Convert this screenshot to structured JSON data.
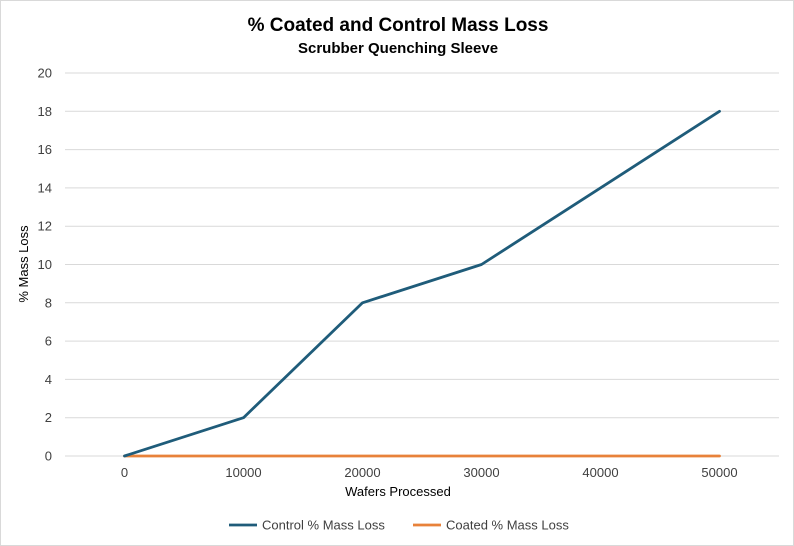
{
  "chart_data": {
    "type": "line",
    "title": "% Coated and Control Mass Loss",
    "subtitle": "Scrubber Quenching Sleeve",
    "xlabel": "Wafers Processed",
    "ylabel": "% Mass Loss",
    "x": [
      0,
      10000,
      20000,
      30000,
      40000,
      50000
    ],
    "x_tick_labels": [
      "0",
      "10000",
      "20000",
      "30000",
      "40000",
      "50000"
    ],
    "ylim": [
      0,
      20
    ],
    "y_ticks": [
      0,
      2,
      4,
      6,
      8,
      10,
      12,
      14,
      16,
      18,
      20
    ],
    "y_tick_labels": [
      "0",
      "2",
      "4",
      "6",
      "8",
      "10",
      "12",
      "14",
      "16",
      "18",
      "20"
    ],
    "grid": true,
    "legend_position": "bottom",
    "series": [
      {
        "name": "Control % Mass Loss",
        "color": "#1f5c7a",
        "values": [
          0,
          2,
          8,
          10,
          14,
          18
        ]
      },
      {
        "name": "Coated % Mass Loss",
        "color": "#e8823a",
        "values": [
          0,
          0,
          0,
          0,
          0,
          0
        ]
      }
    ]
  }
}
